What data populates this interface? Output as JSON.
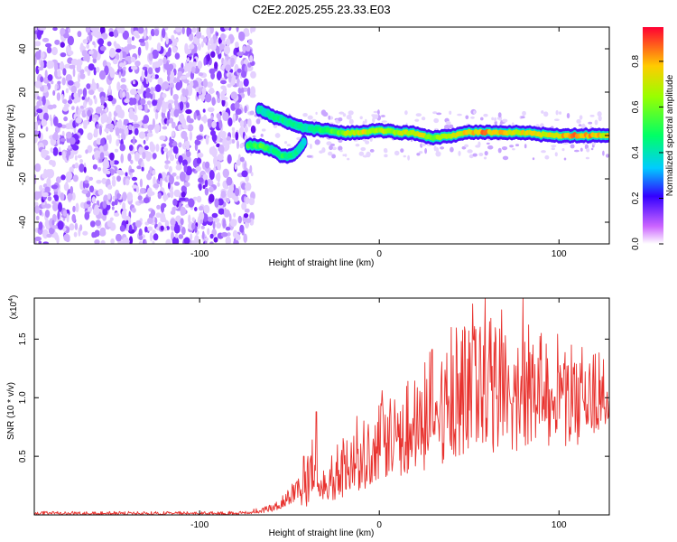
{
  "chart_data": [
    {
      "type": "heatmap",
      "title": "C2E2.2025.255.23.33.E03",
      "xlabel": "Height of straight line (km)",
      "ylabel": "Frequency (Hz)",
      "xlim": [
        -192,
        128
      ],
      "ylim": [
        -50,
        50
      ],
      "xticks": [
        -100,
        0,
        100
      ],
      "yticks": [
        -40,
        -20,
        0,
        20,
        40
      ],
      "colorbar": {
        "label": "Normalized spectral amplitude",
        "range": [
          0.0,
          0.95
        ],
        "ticks": [
          "0.0",
          "0.2",
          "0.4",
          "0.6",
          "0.8"
        ]
      },
      "noise_region_x": [
        -192,
        -70
      ],
      "ridge": [
        {
          "x": -73,
          "y": -4.5,
          "a": 0.55
        },
        {
          "x": -66,
          "y": -5.0,
          "a": 0.6
        },
        {
          "x": -60,
          "y": -6.5,
          "a": 0.5
        },
        {
          "x": -55,
          "y": -9.0,
          "a": 0.55
        },
        {
          "x": -50,
          "y": -9.5,
          "a": 0.5
        },
        {
          "x": -45,
          "y": -7.0,
          "a": 0.45
        },
        {
          "x": -42,
          "y": -3.0,
          "a": 0.4
        },
        {
          "x": -67,
          "y": 12.0,
          "a": 0.5
        },
        {
          "x": -62,
          "y": 10.0,
          "a": 0.45
        },
        {
          "x": -57,
          "y": 8.0,
          "a": 0.5
        },
        {
          "x": -40,
          "y": 3.0,
          "a": 0.45
        },
        {
          "x": -30,
          "y": 2.5,
          "a": 0.55
        },
        {
          "x": -20,
          "y": 1.0,
          "a": 0.7
        },
        {
          "x": -10,
          "y": 1.5,
          "a": 0.8
        },
        {
          "x": 0,
          "y": 2.5,
          "a": 0.75
        },
        {
          "x": 10,
          "y": 1.5,
          "a": 0.7
        },
        {
          "x": 20,
          "y": 1.0,
          "a": 0.8
        },
        {
          "x": 30,
          "y": -1.0,
          "a": 0.7
        },
        {
          "x": 40,
          "y": 0.0,
          "a": 0.75
        },
        {
          "x": 50,
          "y": 1.5,
          "a": 0.85
        },
        {
          "x": 60,
          "y": 1.5,
          "a": 0.9
        },
        {
          "x": 70,
          "y": 1.0,
          "a": 0.85
        },
        {
          "x": 80,
          "y": 1.5,
          "a": 0.8
        },
        {
          "x": 90,
          "y": 0.5,
          "a": 0.8
        },
        {
          "x": 100,
          "y": 0.0,
          "a": 0.85
        },
        {
          "x": 110,
          "y": 0.0,
          "a": 0.9
        },
        {
          "x": 120,
          "y": 0.0,
          "a": 0.85
        },
        {
          "x": 127,
          "y": 0.0,
          "a": 0.8
        }
      ]
    },
    {
      "type": "line",
      "xlabel": "Height of straight line (km)",
      "ylabel": "SNR (10 * v/v)",
      "scale_label": "(x10",
      "scale_exp": "4",
      "scale_suffix": ")",
      "xlim": [
        -192,
        128
      ],
      "ylim": [
        0,
        1.85
      ],
      "xticks": [
        -100,
        0,
        100
      ],
      "yticks": [
        0.5,
        1.0,
        1.5
      ],
      "ytick_labels": [
        "0.5",
        "1.0",
        "1.5"
      ],
      "color": "#e8322e",
      "envelope": {
        "x": [
          -192,
          -80,
          -70,
          -62,
          -55,
          -50,
          -45,
          -42,
          -38,
          -35,
          -30,
          -25,
          -20,
          -10,
          0,
          10,
          20,
          30,
          40,
          50,
          60,
          70,
          80,
          90,
          100,
          110,
          120,
          128
        ],
        "lo": [
          0.0,
          0.0,
          0.01,
          0.02,
          0.05,
          0.08,
          0.12,
          0.05,
          0.1,
          0.08,
          0.1,
          0.12,
          0.15,
          0.2,
          0.25,
          0.3,
          0.35,
          0.4,
          0.45,
          0.48,
          0.5,
          0.52,
          0.55,
          0.55,
          0.58,
          0.6,
          0.62,
          0.62
        ],
        "hi": [
          0.03,
          0.03,
          0.05,
          0.08,
          0.15,
          0.25,
          0.4,
          0.35,
          0.75,
          0.35,
          0.4,
          0.55,
          0.7,
          0.9,
          1.05,
          1.2,
          1.35,
          1.5,
          1.6,
          1.65,
          1.7,
          1.7,
          1.65,
          1.6,
          1.55,
          1.45,
          1.4,
          1.35
        ]
      },
      "peaks": [
        {
          "x": -35,
          "y": 0.88
        },
        {
          "x": -42,
          "y": 0.5
        },
        {
          "x": 40,
          "y": 1.6
        },
        {
          "x": 52,
          "y": 1.8
        },
        {
          "x": 59,
          "y": 1.85
        },
        {
          "x": 68,
          "y": 1.75
        },
        {
          "x": 80,
          "y": 1.85
        },
        {
          "x": 90,
          "y": 1.55
        }
      ]
    }
  ]
}
